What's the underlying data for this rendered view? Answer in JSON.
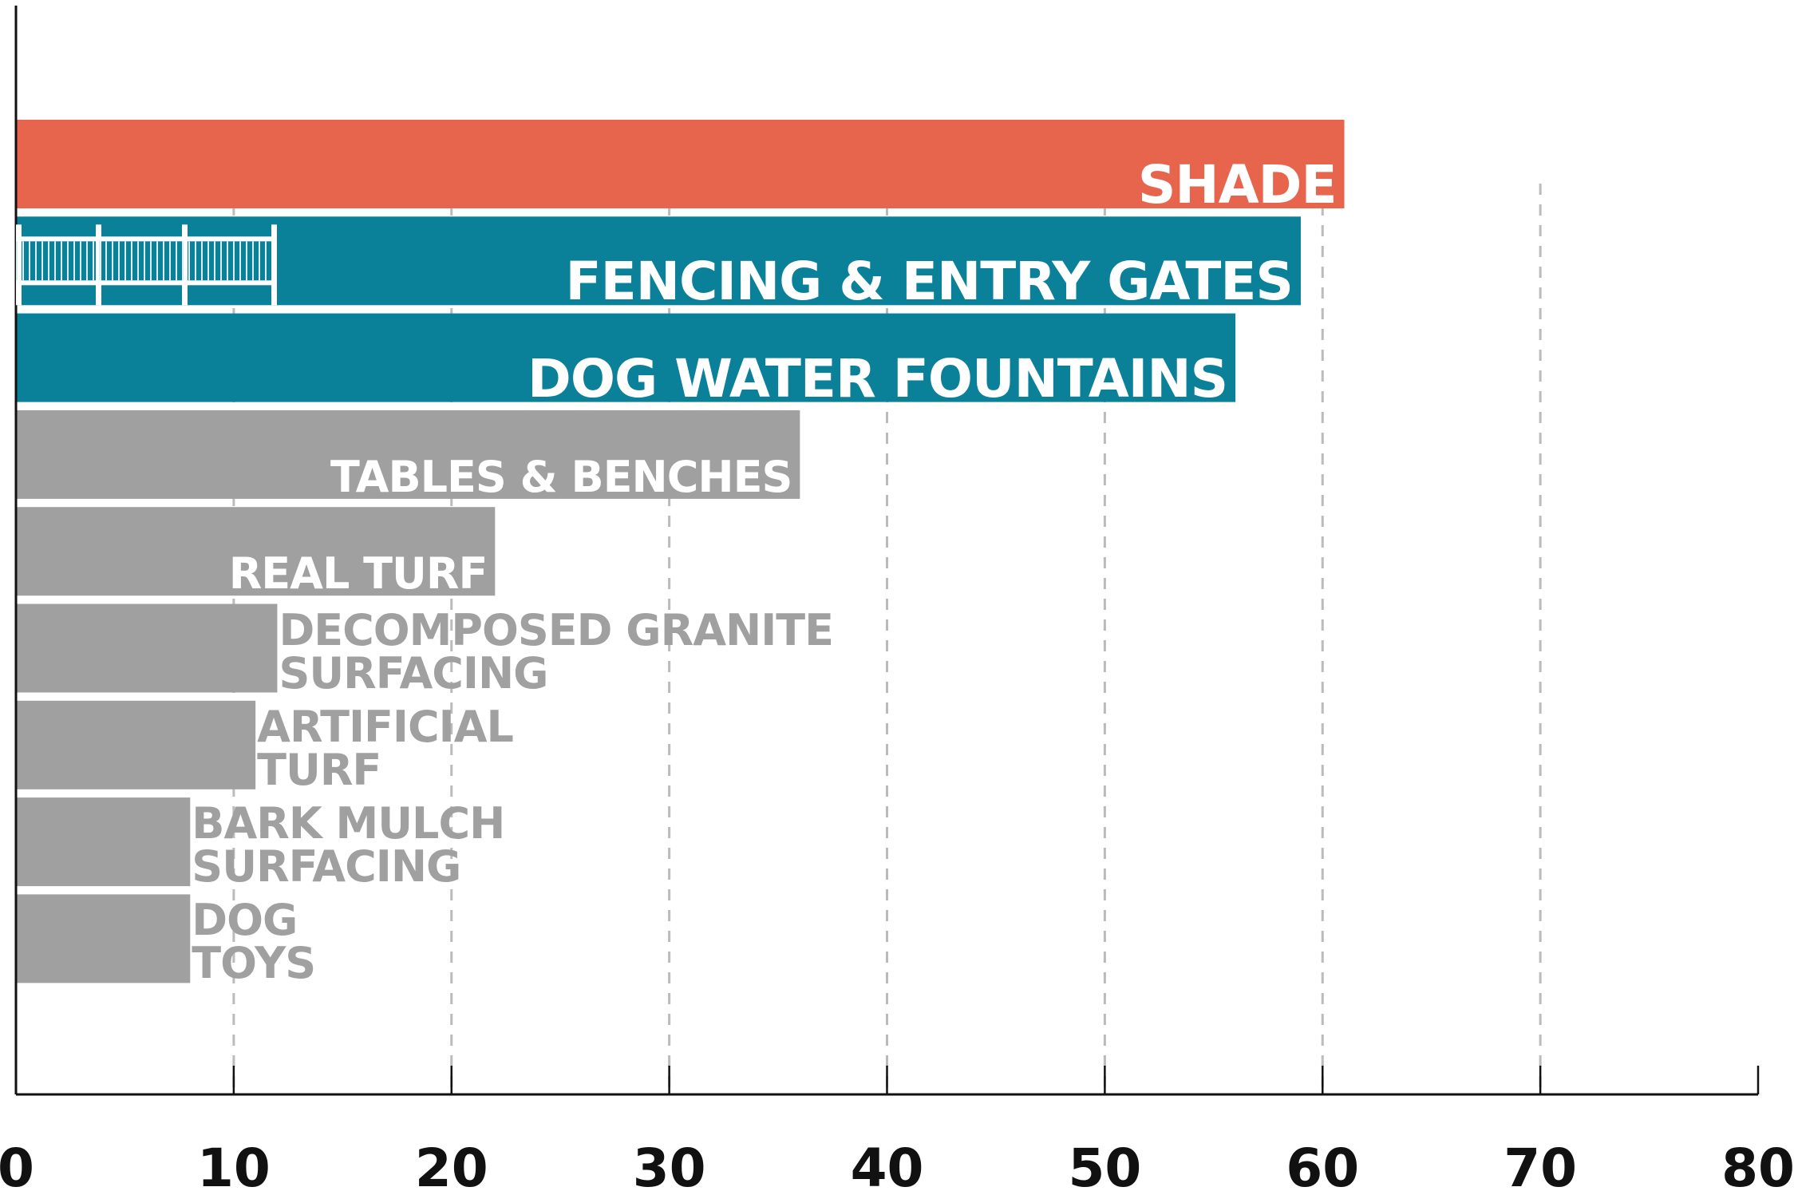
{
  "chart_data": {
    "type": "barh",
    "categories": [
      "SHADE",
      "FENCING & ENTRY GATES",
      "DOG WATER FOUNTAINS",
      "TABLES & BENCHES",
      "REAL TURF",
      "DECOMPOSED GRANITE\nSURFACING",
      "ARTIFICIAL\nTURF",
      "BARK MULCH\nSURFACING",
      "DOG\nTOYS"
    ],
    "values": [
      61,
      59,
      56,
      36,
      22,
      12,
      11,
      8,
      8
    ],
    "colors": [
      "#e8654d",
      "#0a8099",
      "#0a8099",
      "#a0a0a0",
      "#a0a0a0",
      "#a0a0a0",
      "#a0a0a0",
      "#a0a0a0",
      "#a0a0a0"
    ],
    "xlim": [
      0,
      80
    ],
    "xticks": [
      0,
      10,
      20,
      30,
      40,
      50,
      60,
      70,
      80
    ],
    "grid": true
  }
}
